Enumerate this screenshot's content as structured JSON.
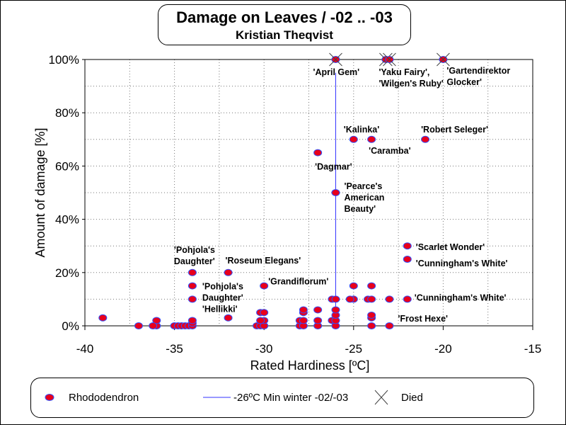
{
  "chart_data": {
    "type": "scatter",
    "title": "Damage on Leaves / -02 .. -03",
    "subtitle": "Kristian Theqvist",
    "xlabel": "Rated Hardiness [ºC]",
    "ylabel": "Amount of damage [%]",
    "xlim": [
      -40,
      -15
    ],
    "ylim": [
      0,
      100
    ],
    "xticks": [
      -40,
      -35,
      -30,
      -25,
      -20,
      -15
    ],
    "yticks": [
      0,
      20,
      40,
      60,
      80,
      100
    ],
    "ytick_suffix": "%",
    "grid": true,
    "legend_placement": "bottom",
    "legend": {
      "series": "Rhododendron",
      "line": "-26ºC Min winter -02/-03",
      "died": "Died"
    },
    "colors": {
      "marker_fill": "#e8001c",
      "marker_edge": "#3050ff",
      "line": "#3333ff",
      "cross": "#444444"
    },
    "reference_line_x": -26,
    "points": [
      [
        -39,
        3
      ],
      [
        -37,
        0
      ],
      [
        -36,
        0
      ],
      [
        -36,
        2
      ],
      [
        -36.2,
        0
      ],
      [
        -35,
        0
      ],
      [
        -34.8,
        0
      ],
      [
        -34.6,
        0
      ],
      [
        -34.4,
        0
      ],
      [
        -34.2,
        0
      ],
      [
        -34,
        0
      ],
      [
        -34,
        1
      ],
      [
        -34,
        2
      ],
      [
        -34,
        10
      ],
      [
        -34,
        15
      ],
      [
        -34,
        20
      ],
      [
        -32,
        3
      ],
      [
        -32,
        20
      ],
      [
        -30.4,
        0
      ],
      [
        -30.2,
        0
      ],
      [
        -30,
        0
      ],
      [
        -30,
        2
      ],
      [
        -30.2,
        2
      ],
      [
        -30.2,
        5
      ],
      [
        -30,
        5
      ],
      [
        -30,
        15
      ],
      [
        -28,
        0
      ],
      [
        -28,
        2
      ],
      [
        -27.8,
        0
      ],
      [
        -27.8,
        2
      ],
      [
        -27.8,
        5
      ],
      [
        -27.8,
        6
      ],
      [
        -27,
        0
      ],
      [
        -27,
        2
      ],
      [
        -27,
        6
      ],
      [
        -27,
        65
      ],
      [
        -26.2,
        2
      ],
      [
        -26.2,
        10
      ],
      [
        -26,
        0
      ],
      [
        -26,
        2
      ],
      [
        -26,
        4
      ],
      [
        -26,
        6
      ],
      [
        -26,
        10
      ],
      [
        -26,
        50
      ],
      [
        -25,
        10
      ],
      [
        -25.2,
        10
      ],
      [
        -25,
        15
      ],
      [
        -25,
        70
      ],
      [
        -24.2,
        10
      ],
      [
        -24,
        0
      ],
      [
        -24,
        3
      ],
      [
        -24,
        4
      ],
      [
        -24,
        10
      ],
      [
        -24,
        15
      ],
      [
        -24,
        70
      ],
      [
        -23,
        0
      ],
      [
        -23,
        10
      ],
      [
        -22,
        10
      ],
      [
        -22,
        25
      ],
      [
        -22,
        30
      ],
      [
        -21,
        70
      ]
    ],
    "died_points": [
      [
        -26,
        100
      ],
      [
        -23.2,
        100
      ],
      [
        -23,
        100
      ],
      [
        -20,
        100
      ]
    ],
    "annotations": [
      {
        "text": "'April Gem'",
        "x": -26,
        "y": 100
      },
      {
        "text": "'Yaku Fairy',",
        "x": -23,
        "y": 100
      },
      {
        "text": "'Wilgen's Ruby'",
        "x": -23,
        "y": 100
      },
      {
        "text": "'Gartendirektor",
        "x": -20,
        "y": 100
      },
      {
        "text": "Glocker'",
        "x": -20,
        "y": 100
      },
      {
        "text": "'Kalinka'",
        "x": -25,
        "y": 70
      },
      {
        "text": "'Caramba'",
        "x": -24,
        "y": 70
      },
      {
        "text": "'Robert Seleger'",
        "x": -21,
        "y": 70
      },
      {
        "text": "'Dagmar'",
        "x": -27,
        "y": 65
      },
      {
        "text": "'Pearce's",
        "x": -26,
        "y": 50
      },
      {
        "text": "American",
        "x": -26,
        "y": 50
      },
      {
        "text": "Beauty'",
        "x": -26,
        "y": 50
      },
      {
        "text": "'Pohjola's",
        "x": -34,
        "y": 20
      },
      {
        "text": "Daughter'",
        "x": -34,
        "y": 20
      },
      {
        "text": "'Roseum Elegans'",
        "x": -32,
        "y": 20
      },
      {
        "text": "'Grandiflorum'",
        "x": -30,
        "y": 15
      },
      {
        "text": "'Pohjola's",
        "x": -34,
        "y": 15
      },
      {
        "text": "Daughter'",
        "x": -34,
        "y": 15
      },
      {
        "text": "'Hellikki'",
        "x": -34,
        "y": 10
      },
      {
        "text": "'Scarlet Wonder'",
        "x": -22,
        "y": 30
      },
      {
        "text": "'Cunningham's White'",
        "x": -22,
        "y": 25
      },
      {
        "text": "'Cunningham's White'",
        "x": -22,
        "y": 10
      },
      {
        "text": "'Frost Hexe'",
        "x": -23,
        "y": 0
      }
    ]
  }
}
